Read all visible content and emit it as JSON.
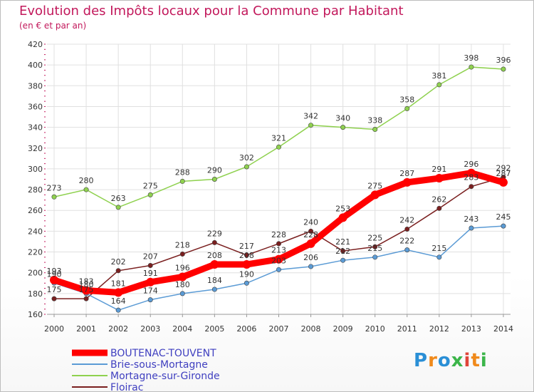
{
  "header": {
    "title": "Evolution des Impôts locaux pour la Commune par Habitant",
    "subtitle": "(en € et par an)"
  },
  "logo": {
    "text": "Proxiti",
    "letter_colors": [
      "#2a8fd6",
      "#f08a1c",
      "#2a8fd6",
      "#3cb54a",
      "#e0453a",
      "#f08a1c",
      "#3cb54a"
    ]
  },
  "chart_data": {
    "type": "line",
    "title": "Evolution des Impôts locaux pour la Commune par Habitant",
    "subtitle": "(en € et par an)",
    "xlabel": "",
    "ylabel": "",
    "categories": [
      "2000",
      "2001",
      "2002",
      "2003",
      "2004",
      "2005",
      "2006",
      "2007",
      "2008",
      "2009",
      "2010",
      "2011",
      "2012",
      "2013",
      "2014"
    ],
    "ylim": [
      160,
      420
    ],
    "yticks": [
      160,
      180,
      200,
      220,
      240,
      260,
      280,
      300,
      320,
      340,
      360,
      380,
      400,
      420
    ],
    "grid": true,
    "series": [
      {
        "name": "BOUTENAC-TOUVENT",
        "color": "#ff0000",
        "values": [
          193,
          183,
          181,
          191,
          196,
          208,
          208,
          213,
          228,
          253,
          275,
          287,
          291,
          296,
          287
        ]
      },
      {
        "name": "Brie-sous-Mortagne",
        "color": "#5b9bd5",
        "values": [
          190,
          180,
          164,
          174,
          180,
          184,
          190,
          203,
          206,
          212,
          215,
          222,
          215,
          243,
          245
        ]
      },
      {
        "name": "Mortagne-sur-Gironde",
        "color": "#8fd14f",
        "values": [
          273,
          280,
          263,
          275,
          288,
          290,
          302,
          321,
          342,
          340,
          338,
          358,
          381,
          398,
          396
        ]
      },
      {
        "name": "Floirac",
        "color": "#7a1f1f",
        "values": [
          175,
          175,
          202,
          207,
          218,
          229,
          217,
          228,
          240,
          221,
          225,
          242,
          262,
          283,
          292
        ]
      }
    ]
  }
}
